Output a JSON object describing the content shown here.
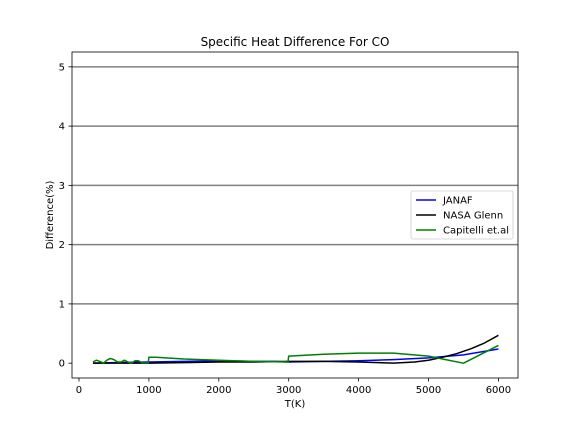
{
  "chart_data": {
    "type": "line",
    "title": "Specific Heat Difference For CO",
    "xlabel": "T(K)",
    "ylabel": "Difference(%)",
    "xlim": [
      -100,
      6280
    ],
    "ylim": [
      -0.25,
      5.25
    ],
    "xticks": [
      0,
      1000,
      2000,
      3000,
      4000,
      5000,
      6000
    ],
    "xtick_labels": [
      "0",
      "1000",
      "2000",
      "3000",
      "4000",
      "5000",
      "6000"
    ],
    "yticks": [
      0,
      1,
      2,
      3,
      4,
      5
    ],
    "ytick_labels": [
      "0",
      "1",
      "2",
      "3",
      "4",
      "5"
    ],
    "grid": {
      "axis": "y",
      "on": true,
      "color": "#808080"
    },
    "legend_position": "center-right",
    "series": [
      {
        "name": "JANAF",
        "color": "#0000ff",
        "x": [
          200,
          500,
          1000,
          1500,
          2000,
          2500,
          2800,
          3000,
          3500,
          4000,
          4500,
          5000,
          5500,
          6000
        ],
        "y": [
          0.0,
          0.01,
          0.02,
          0.03,
          0.04,
          0.03,
          0.03,
          0.02,
          0.03,
          0.04,
          0.06,
          0.09,
          0.14,
          0.24
        ]
      },
      {
        "name": "NASA Glenn",
        "color": "#000000",
        "x": [
          200,
          500,
          1000,
          1500,
          2000,
          2500,
          3000,
          3500,
          4000,
          4500,
          4800,
          5000,
          5200,
          5400,
          5600,
          5800,
          6000
        ],
        "y": [
          0.0,
          0.0,
          0.0,
          0.01,
          0.02,
          0.02,
          0.03,
          0.03,
          0.02,
          0.0,
          0.02,
          0.05,
          0.1,
          0.16,
          0.24,
          0.34,
          0.47
        ]
      },
      {
        "name": "Capitelli et.al",
        "color": "#008000",
        "x": [
          200,
          250,
          300,
          350,
          400,
          450,
          500,
          550,
          600,
          650,
          700,
          750,
          800,
          850,
          900,
          950,
          990,
          1000,
          1100,
          1500,
          2000,
          2500,
          2990,
          3000,
          3500,
          4000,
          4500,
          5000,
          5200,
          5500,
          6000
        ],
        "y": [
          0.02,
          0.05,
          0.03,
          0.0,
          0.05,
          0.08,
          0.06,
          0.02,
          0.02,
          0.05,
          0.02,
          0.0,
          0.04,
          0.04,
          0.01,
          0.0,
          0.01,
          0.1,
          0.1,
          0.07,
          0.05,
          0.03,
          0.02,
          0.12,
          0.15,
          0.17,
          0.17,
          0.12,
          0.07,
          0.0,
          0.3
        ]
      }
    ]
  }
}
